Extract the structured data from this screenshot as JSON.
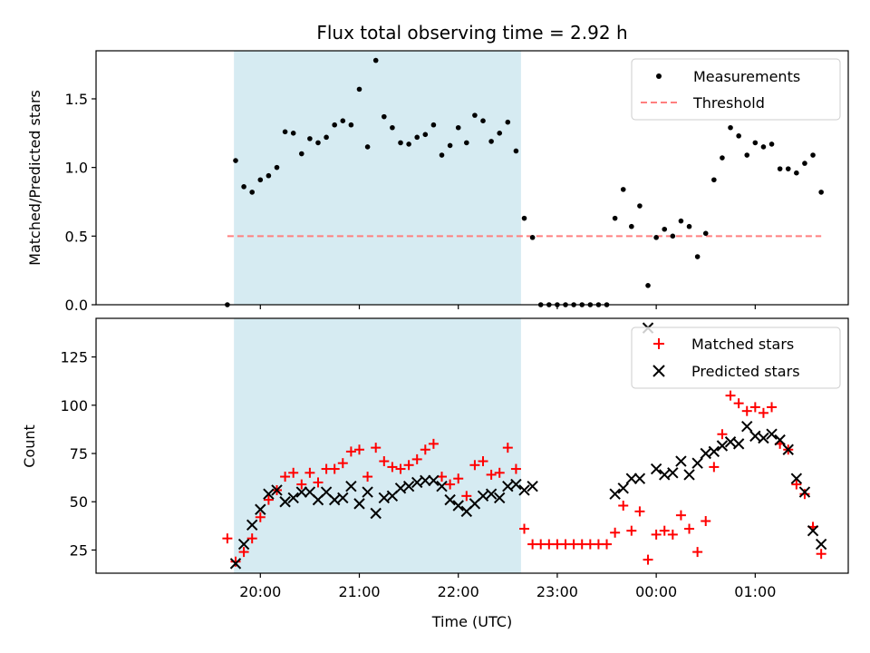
{
  "chart_data": [
    {
      "type": "scatter",
      "title": "Flux total observing time = 2.92 h",
      "ylabel": "Matched/Predicted stars",
      "ylim": [
        0,
        1.85
      ],
      "xlim": [
        -0.66,
        6.94
      ],
      "x_unit": "hours since 19:00 UTC",
      "yticks": [
        {
          "value": 0.0,
          "label": "0.0"
        },
        {
          "value": 0.5,
          "label": "0.5"
        },
        {
          "value": 1.0,
          "label": "1.0"
        },
        {
          "value": 1.5,
          "label": "1.5"
        }
      ],
      "observing_window": {
        "start": "19:44",
        "end": "22:38",
        "color": "#add8e6"
      },
      "legend": {
        "placement": "upper right",
        "items": [
          "Measurements",
          "Threshold"
        ]
      },
      "threshold": {
        "name": "Threshold",
        "y": 0.5,
        "x_start": "19:40",
        "x_end": "01:40",
        "color": "#ff7f7f",
        "style": "dashed"
      },
      "series": [
        {
          "name": "Measurements",
          "color": "#000000",
          "marker": "dot",
          "points": [
            [
              "19:40",
              0.0
            ],
            [
              "19:45",
              1.05
            ],
            [
              "19:50",
              0.86
            ],
            [
              "19:55",
              0.82
            ],
            [
              "20:00",
              0.91
            ],
            [
              "20:05",
              0.94
            ],
            [
              "20:10",
              1.0
            ],
            [
              "20:15",
              1.26
            ],
            [
              "20:20",
              1.25
            ],
            [
              "20:25",
              1.1
            ],
            [
              "20:30",
              1.21
            ],
            [
              "20:35",
              1.18
            ],
            [
              "20:40",
              1.22
            ],
            [
              "20:45",
              1.31
            ],
            [
              "20:50",
              1.34
            ],
            [
              "20:55",
              1.31
            ],
            [
              "21:00",
              1.57
            ],
            [
              "21:05",
              1.15
            ],
            [
              "21:10",
              1.78
            ],
            [
              "21:15",
              1.37
            ],
            [
              "21:20",
              1.29
            ],
            [
              "21:25",
              1.18
            ],
            [
              "21:30",
              1.17
            ],
            [
              "21:35",
              1.22
            ],
            [
              "21:40",
              1.24
            ],
            [
              "21:45",
              1.31
            ],
            [
              "21:50",
              1.09
            ],
            [
              "21:55",
              1.16
            ],
            [
              "22:00",
              1.29
            ],
            [
              "22:05",
              1.18
            ],
            [
              "22:10",
              1.38
            ],
            [
              "22:15",
              1.34
            ],
            [
              "22:20",
              1.19
            ],
            [
              "22:25",
              1.25
            ],
            [
              "22:30",
              1.33
            ],
            [
              "22:35",
              1.12
            ],
            [
              "22:40",
              0.63
            ],
            [
              "22:45",
              0.49
            ],
            [
              "22:50",
              0.0
            ],
            [
              "22:55",
              0.0
            ],
            [
              "23:00",
              0.0
            ],
            [
              "23:05",
              0.0
            ],
            [
              "23:10",
              0.0
            ],
            [
              "23:15",
              0.0
            ],
            [
              "23:20",
              0.0
            ],
            [
              "23:25",
              0.0
            ],
            [
              "23:30",
              0.0
            ],
            [
              "23:35",
              0.63
            ],
            [
              "23:40",
              0.84
            ],
            [
              "23:45",
              0.57
            ],
            [
              "23:50",
              0.72
            ],
            [
              "23:55",
              0.14
            ],
            [
              "00:00",
              0.49
            ],
            [
              "00:05",
              0.55
            ],
            [
              "00:10",
              0.5
            ],
            [
              "00:15",
              0.61
            ],
            [
              "00:20",
              0.57
            ],
            [
              "00:25",
              0.35
            ],
            [
              "00:30",
              0.52
            ],
            [
              "00:35",
              0.91
            ],
            [
              "00:40",
              1.07
            ],
            [
              "00:45",
              1.29
            ],
            [
              "00:50",
              1.23
            ],
            [
              "00:55",
              1.09
            ],
            [
              "01:00",
              1.18
            ],
            [
              "01:05",
              1.15
            ],
            [
              "01:10",
              1.17
            ],
            [
              "01:15",
              0.99
            ],
            [
              "01:20",
              0.99
            ],
            [
              "01:25",
              0.96
            ],
            [
              "01:30",
              1.03
            ],
            [
              "01:35",
              1.09
            ],
            [
              "01:40",
              0.82
            ]
          ]
        }
      ]
    },
    {
      "type": "scatter",
      "xlabel": "Time (UTC)",
      "ylabel": "Count",
      "ylim": [
        13,
        145
      ],
      "xlim": [
        -0.66,
        6.94
      ],
      "x_unit": "hours since 19:00 UTC",
      "yticks": [
        {
          "value": 25,
          "label": "25"
        },
        {
          "value": 50,
          "label": "50"
        },
        {
          "value": 75,
          "label": "75"
        },
        {
          "value": 100,
          "label": "100"
        },
        {
          "value": 125,
          "label": "125"
        }
      ],
      "xticks": [
        {
          "value": "20:00",
          "label": "20:00"
        },
        {
          "value": "21:00",
          "label": "21:00"
        },
        {
          "value": "22:00",
          "label": "22:00"
        },
        {
          "value": "23:00",
          "label": "23:00"
        },
        {
          "value": "00:00",
          "label": "00:00"
        },
        {
          "value": "01:00",
          "label": "01:00"
        }
      ],
      "observing_window": {
        "start": "19:44",
        "end": "22:38",
        "color": "#add8e6"
      },
      "legend": {
        "placement": "upper right",
        "items": [
          "Matched stars",
          "Predicted stars"
        ]
      },
      "series": [
        {
          "name": "Matched stars",
          "color": "#ff0000",
          "marker": "plus",
          "points": [
            [
              "19:40",
              31
            ],
            [
              "19:45",
              19
            ],
            [
              "19:50",
              24
            ],
            [
              "19:55",
              31
            ],
            [
              "20:00",
              42
            ],
            [
              "20:05",
              51
            ],
            [
              "20:10",
              56
            ],
            [
              "20:15",
              63
            ],
            [
              "20:20",
              65
            ],
            [
              "20:25",
              59
            ],
            [
              "20:30",
              65
            ],
            [
              "20:35",
              60
            ],
            [
              "20:40",
              67
            ],
            [
              "20:45",
              67
            ],
            [
              "20:50",
              70
            ],
            [
              "20:55",
              76
            ],
            [
              "21:00",
              77
            ],
            [
              "21:05",
              63
            ],
            [
              "21:10",
              78
            ],
            [
              "21:15",
              71
            ],
            [
              "21:20",
              68
            ],
            [
              "21:25",
              67
            ],
            [
              "21:30",
              69
            ],
            [
              "21:35",
              72
            ],
            [
              "21:40",
              77
            ],
            [
              "21:45",
              80
            ],
            [
              "21:50",
              63
            ],
            [
              "21:55",
              59
            ],
            [
              "22:00",
              62
            ],
            [
              "22:05",
              53
            ],
            [
              "22:10",
              69
            ],
            [
              "22:15",
              71
            ],
            [
              "22:20",
              64
            ],
            [
              "22:25",
              65
            ],
            [
              "22:30",
              78
            ],
            [
              "22:35",
              67
            ],
            [
              "22:40",
              36
            ],
            [
              "22:45",
              28
            ],
            [
              "22:50",
              28
            ],
            [
              "22:55",
              28
            ],
            [
              "23:00",
              28
            ],
            [
              "23:05",
              28
            ],
            [
              "23:10",
              28
            ],
            [
              "23:15",
              28
            ],
            [
              "23:20",
              28
            ],
            [
              "23:25",
              28
            ],
            [
              "23:30",
              28
            ],
            [
              "23:35",
              34
            ],
            [
              "23:40",
              48
            ],
            [
              "23:45",
              35
            ],
            [
              "23:50",
              45
            ],
            [
              "23:55",
              20
            ],
            [
              "00:00",
              33
            ],
            [
              "00:05",
              35
            ],
            [
              "00:10",
              33
            ],
            [
              "00:15",
              43
            ],
            [
              "00:20",
              36
            ],
            [
              "00:25",
              24
            ],
            [
              "00:30",
              40
            ],
            [
              "00:35",
              68
            ],
            [
              "00:40",
              85
            ],
            [
              "00:45",
              105
            ],
            [
              "00:50",
              101
            ],
            [
              "00:55",
              97
            ],
            [
              "01:00",
              99
            ],
            [
              "01:05",
              96
            ],
            [
              "01:10",
              99
            ],
            [
              "01:15",
              80
            ],
            [
              "01:20",
              77
            ],
            [
              "01:25",
              59
            ],
            [
              "01:30",
              54
            ],
            [
              "01:35",
              37
            ],
            [
              "01:40",
              23
            ]
          ]
        },
        {
          "name": "Predicted stars",
          "color": "#000000",
          "marker": "x",
          "points": [
            [
              "19:45",
              18
            ],
            [
              "19:50",
              28
            ],
            [
              "19:55",
              38
            ],
            [
              "20:00",
              46
            ],
            [
              "20:05",
              54
            ],
            [
              "20:10",
              56
            ],
            [
              "20:15",
              50
            ],
            [
              "20:20",
              52
            ],
            [
              "20:25",
              55
            ],
            [
              "20:30",
              55
            ],
            [
              "20:35",
              51
            ],
            [
              "20:40",
              55
            ],
            [
              "20:45",
              51
            ],
            [
              "20:50",
              52
            ],
            [
              "20:55",
              58
            ],
            [
              "21:00",
              49
            ],
            [
              "21:05",
              55
            ],
            [
              "21:10",
              44
            ],
            [
              "21:15",
              52
            ],
            [
              "21:20",
              53
            ],
            [
              "21:25",
              57
            ],
            [
              "21:30",
              58
            ],
            [
              "21:35",
              60
            ],
            [
              "21:40",
              61
            ],
            [
              "21:45",
              61
            ],
            [
              "21:50",
              58
            ],
            [
              "21:55",
              51
            ],
            [
              "22:00",
              48
            ],
            [
              "22:05",
              45
            ],
            [
              "22:10",
              49
            ],
            [
              "22:15",
              53
            ],
            [
              "22:20",
              54
            ],
            [
              "22:25",
              52
            ],
            [
              "22:30",
              58
            ],
            [
              "22:35",
              59
            ],
            [
              "22:40",
              56
            ],
            [
              "22:45",
              58
            ],
            [
              "23:35",
              54
            ],
            [
              "23:40",
              57
            ],
            [
              "23:45",
              62
            ],
            [
              "23:50",
              62
            ],
            [
              "23:55",
              140
            ],
            [
              "00:00",
              67
            ],
            [
              "00:05",
              64
            ],
            [
              "00:10",
              65
            ],
            [
              "00:15",
              71
            ],
            [
              "00:20",
              64
            ],
            [
              "00:25",
              70
            ],
            [
              "00:30",
              75
            ],
            [
              "00:35",
              76
            ],
            [
              "00:40",
              79
            ],
            [
              "00:45",
              81
            ],
            [
              "00:50",
              80
            ],
            [
              "00:55",
              89
            ],
            [
              "01:00",
              84
            ],
            [
              "01:05",
              83
            ],
            [
              "01:10",
              85
            ],
            [
              "01:15",
              82
            ],
            [
              "01:20",
              77
            ],
            [
              "01:25",
              62
            ],
            [
              "01:30",
              55
            ],
            [
              "01:35",
              35
            ],
            [
              "01:40",
              28
            ]
          ]
        }
      ]
    }
  ]
}
